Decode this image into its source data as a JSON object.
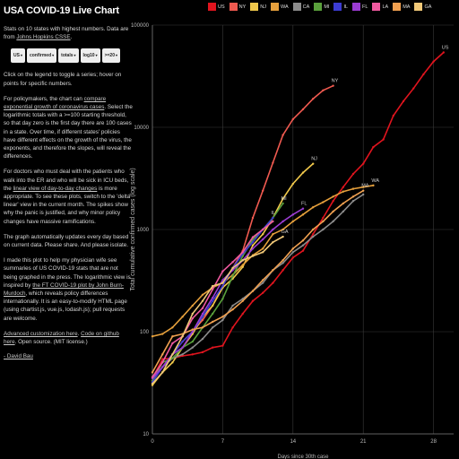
{
  "sidebar": {
    "title": "USA COVID-19 Live Chart",
    "intro": "Stats on 10 states with highest numbers. Data are from",
    "intro_link": "Johns Hopkins CSSE",
    "intro_end": ".",
    "selects": [
      "US",
      "confirmed",
      "totals",
      "log10",
      ">=20"
    ],
    "p_click": "Click on the legend to toggle a series; hover on points for specific numbers.",
    "p_policy_a": "For policymakers, the chart can",
    "p_policy_link": "compare exponential growth of coronavirus cases",
    "p_policy_b": ". Select the logarithmic totals with a >=100 starting threshold, so that day zero is the first day there are 100 cases in a state. Over time, if different states' policies have different effects on the growth of the virus, the exponents, and therefore the slopes, will reveal the differences.",
    "p_doctors_a": "For doctors who must deal with the patients who walk into the ER and who will be sick in ICU beds, the",
    "p_doctors_link": "linear view of day-to-day changes",
    "p_doctors_b": "is more appropriate. To see these plots, switch to the 'delta linear' view in the current month. The spikes show why the panic is justified, and why minor policy changes have massive ramifications.",
    "p_update": "The graph automatically updates every day based on current data. Please share. And please isolate.",
    "p_made_a": "I made this plot to help my physician wife see summaries of US COVID-19 stats that are not being graphed in the press. The logarithmic view is inspired by",
    "p_made_link1": "the FT COVID-19 plot by John Burn-Murdoch",
    "p_made_b": ", which reveals policy differences internationally. It is an easy-to-modify HTML page (using chartist.js, vue.js, lodash.js); pull requests are welcome.",
    "adv_link": "Advanced customization here",
    "adv_sep": ".",
    "code_link": "Code on github here",
    "adv_end": ". Open source. (MIT license.)",
    "signature": "- David Bau"
  },
  "legend": [
    {
      "name": "US",
      "color": "#e0141e"
    },
    {
      "name": "NY",
      "color": "#f05a50"
    },
    {
      "name": "NJ",
      "color": "#f0c84b"
    },
    {
      "name": "WA",
      "color": "#e6a03c"
    },
    {
      "name": "CA",
      "color": "#8c8c8c"
    },
    {
      "name": "MI",
      "color": "#5aa03c"
    },
    {
      "name": "IL",
      "color": "#3c3cd2"
    },
    {
      "name": "FL",
      "color": "#9b3cd2"
    },
    {
      "name": "LA",
      "color": "#f05aa0"
    },
    {
      "name": "MA",
      "color": "#f0a050"
    },
    {
      "name": "GA",
      "color": "#f0c878"
    }
  ],
  "chart_data": {
    "type": "line",
    "scale": "log10",
    "xlabel": "Days since 30th case",
    "ylabel": "Total cumulative confirmed cases (log scale)",
    "xlim": [
      0,
      30
    ],
    "ylim": [
      10,
      100000
    ],
    "x_ticks": [
      0,
      7,
      14,
      21,
      28
    ],
    "y_ticks": [
      10,
      100,
      1000,
      10000,
      100000
    ],
    "series": [
      {
        "name": "US",
        "color": "#e0141e",
        "x": [
          0,
          1,
          2,
          3,
          4,
          5,
          6,
          7,
          8,
          9,
          10,
          11,
          12,
          13,
          14,
          15,
          16,
          17,
          18,
          19,
          20,
          21,
          22,
          23,
          24,
          25,
          26,
          27,
          28,
          29
        ],
        "values": [
          35,
          54,
          55,
          58,
          60,
          63,
          70,
          73,
          110,
          150,
          200,
          240,
          300,
          400,
          530,
          620,
          900,
          1300,
          1900,
          2600,
          3500,
          4400,
          6400,
          7600,
          13000,
          18000,
          24000,
          33000,
          44000,
          54000
        ]
      },
      {
        "name": "NY",
        "color": "#f05a50",
        "x": [
          0,
          1,
          2,
          3,
          4,
          5,
          6,
          7,
          8,
          9,
          10,
          11,
          12,
          13,
          14,
          15,
          16,
          17,
          18
        ],
        "values": [
          33,
          45,
          60,
          80,
          100,
          130,
          180,
          280,
          420,
          620,
          1300,
          2400,
          4500,
          8400,
          12000,
          15000,
          19000,
          23000,
          25500
        ]
      },
      {
        "name": "NJ",
        "color": "#f0c84b",
        "x": [
          0,
          1,
          2,
          3,
          4,
          5,
          6,
          7,
          8,
          9,
          10,
          11,
          12,
          13,
          14,
          15,
          16
        ],
        "values": [
          30,
          40,
          50,
          70,
          95,
          140,
          180,
          270,
          330,
          430,
          700,
          900,
          1300,
          2000,
          2800,
          3600,
          4400
        ]
      },
      {
        "name": "WA",
        "color": "#e6a03c",
        "x": [
          0,
          1,
          2,
          3,
          4,
          5,
          6,
          7,
          8,
          9,
          10,
          11,
          12,
          13,
          14,
          15,
          16,
          17,
          18,
          19,
          20,
          21,
          22
        ],
        "values": [
          90,
          95,
          110,
          140,
          180,
          230,
          270,
          300,
          360,
          450,
          560,
          650,
          900,
          1000,
          1200,
          1400,
          1650,
          1850,
          2100,
          2350,
          2500,
          2600,
          2700
        ]
      },
      {
        "name": "CA",
        "color": "#8c8c8c",
        "x": [
          0,
          1,
          2,
          3,
          4,
          5,
          6,
          7,
          8,
          9,
          10,
          11,
          12,
          13,
          14,
          15,
          16,
          17,
          18,
          19,
          20,
          21
        ],
        "values": [
          33,
          45,
          55,
          60,
          70,
          85,
          110,
          130,
          180,
          210,
          250,
          300,
          400,
          470,
          600,
          700,
          850,
          1000,
          1200,
          1500,
          1900,
          2200
        ]
      },
      {
        "name": "MI",
        "color": "#5aa03c",
        "x": [
          0,
          1,
          2,
          3,
          4,
          5,
          6,
          7,
          8,
          9,
          10,
          11,
          12,
          13
        ],
        "values": [
          33,
          50,
          55,
          70,
          80,
          110,
          150,
          210,
          350,
          550,
          800,
          1000,
          1300,
          1800
        ]
      },
      {
        "name": "IL",
        "color": "#3c3cd2",
        "x": [
          0,
          1,
          2,
          3,
          4,
          5,
          6,
          7,
          8,
          9,
          10,
          11,
          12
        ],
        "values": [
          32,
          45,
          60,
          80,
          100,
          140,
          200,
          280,
          420,
          580,
          750,
          1000,
          1300
        ]
      },
      {
        "name": "FL",
        "color": "#9b3cd2",
        "x": [
          0,
          1,
          2,
          3,
          4,
          5,
          6,
          7,
          8,
          9,
          10,
          11,
          12,
          13,
          14,
          15
        ],
        "values": [
          35,
          45,
          60,
          70,
          100,
          150,
          215,
          320,
          400,
          500,
          650,
          800,
          1000,
          1200,
          1400,
          1600
        ]
      },
      {
        "name": "LA",
        "color": "#f05aa0",
        "x": [
          0,
          1,
          2,
          3,
          4,
          5,
          6,
          7,
          8,
          9,
          10,
          11,
          12
        ],
        "values": [
          36,
          50,
          77,
          90,
          135,
          170,
          260,
          390,
          480,
          600,
          840,
          1000,
          1200
        ]
      },
      {
        "name": "MA",
        "color": "#f0a050",
        "x": [
          0,
          1,
          2,
          3,
          4,
          5,
          6,
          7,
          8,
          9,
          10,
          11,
          12,
          13,
          14,
          15,
          16,
          17,
          18,
          19,
          20,
          21
        ],
        "values": [
          40,
          60,
          90,
          95,
          105,
          110,
          125,
          140,
          165,
          200,
          250,
          320,
          400,
          500,
          650,
          780,
          1000,
          1200,
          1500,
          1800,
          2100,
          2400
        ]
      },
      {
        "name": "GA",
        "color": "#f0c878",
        "x": [
          0,
          1,
          2,
          3,
          4,
          5,
          6,
          7,
          8,
          9,
          10,
          11,
          12,
          13
        ],
        "values": [
          31,
          40,
          60,
          90,
          150,
          200,
          280,
          300,
          420,
          500,
          550,
          600,
          750,
          850
        ]
      }
    ],
    "end_labels": [
      "US",
      "NY",
      "NJ",
      "MI",
      "FL",
      "IL",
      "GA",
      "MA",
      "WA"
    ]
  }
}
